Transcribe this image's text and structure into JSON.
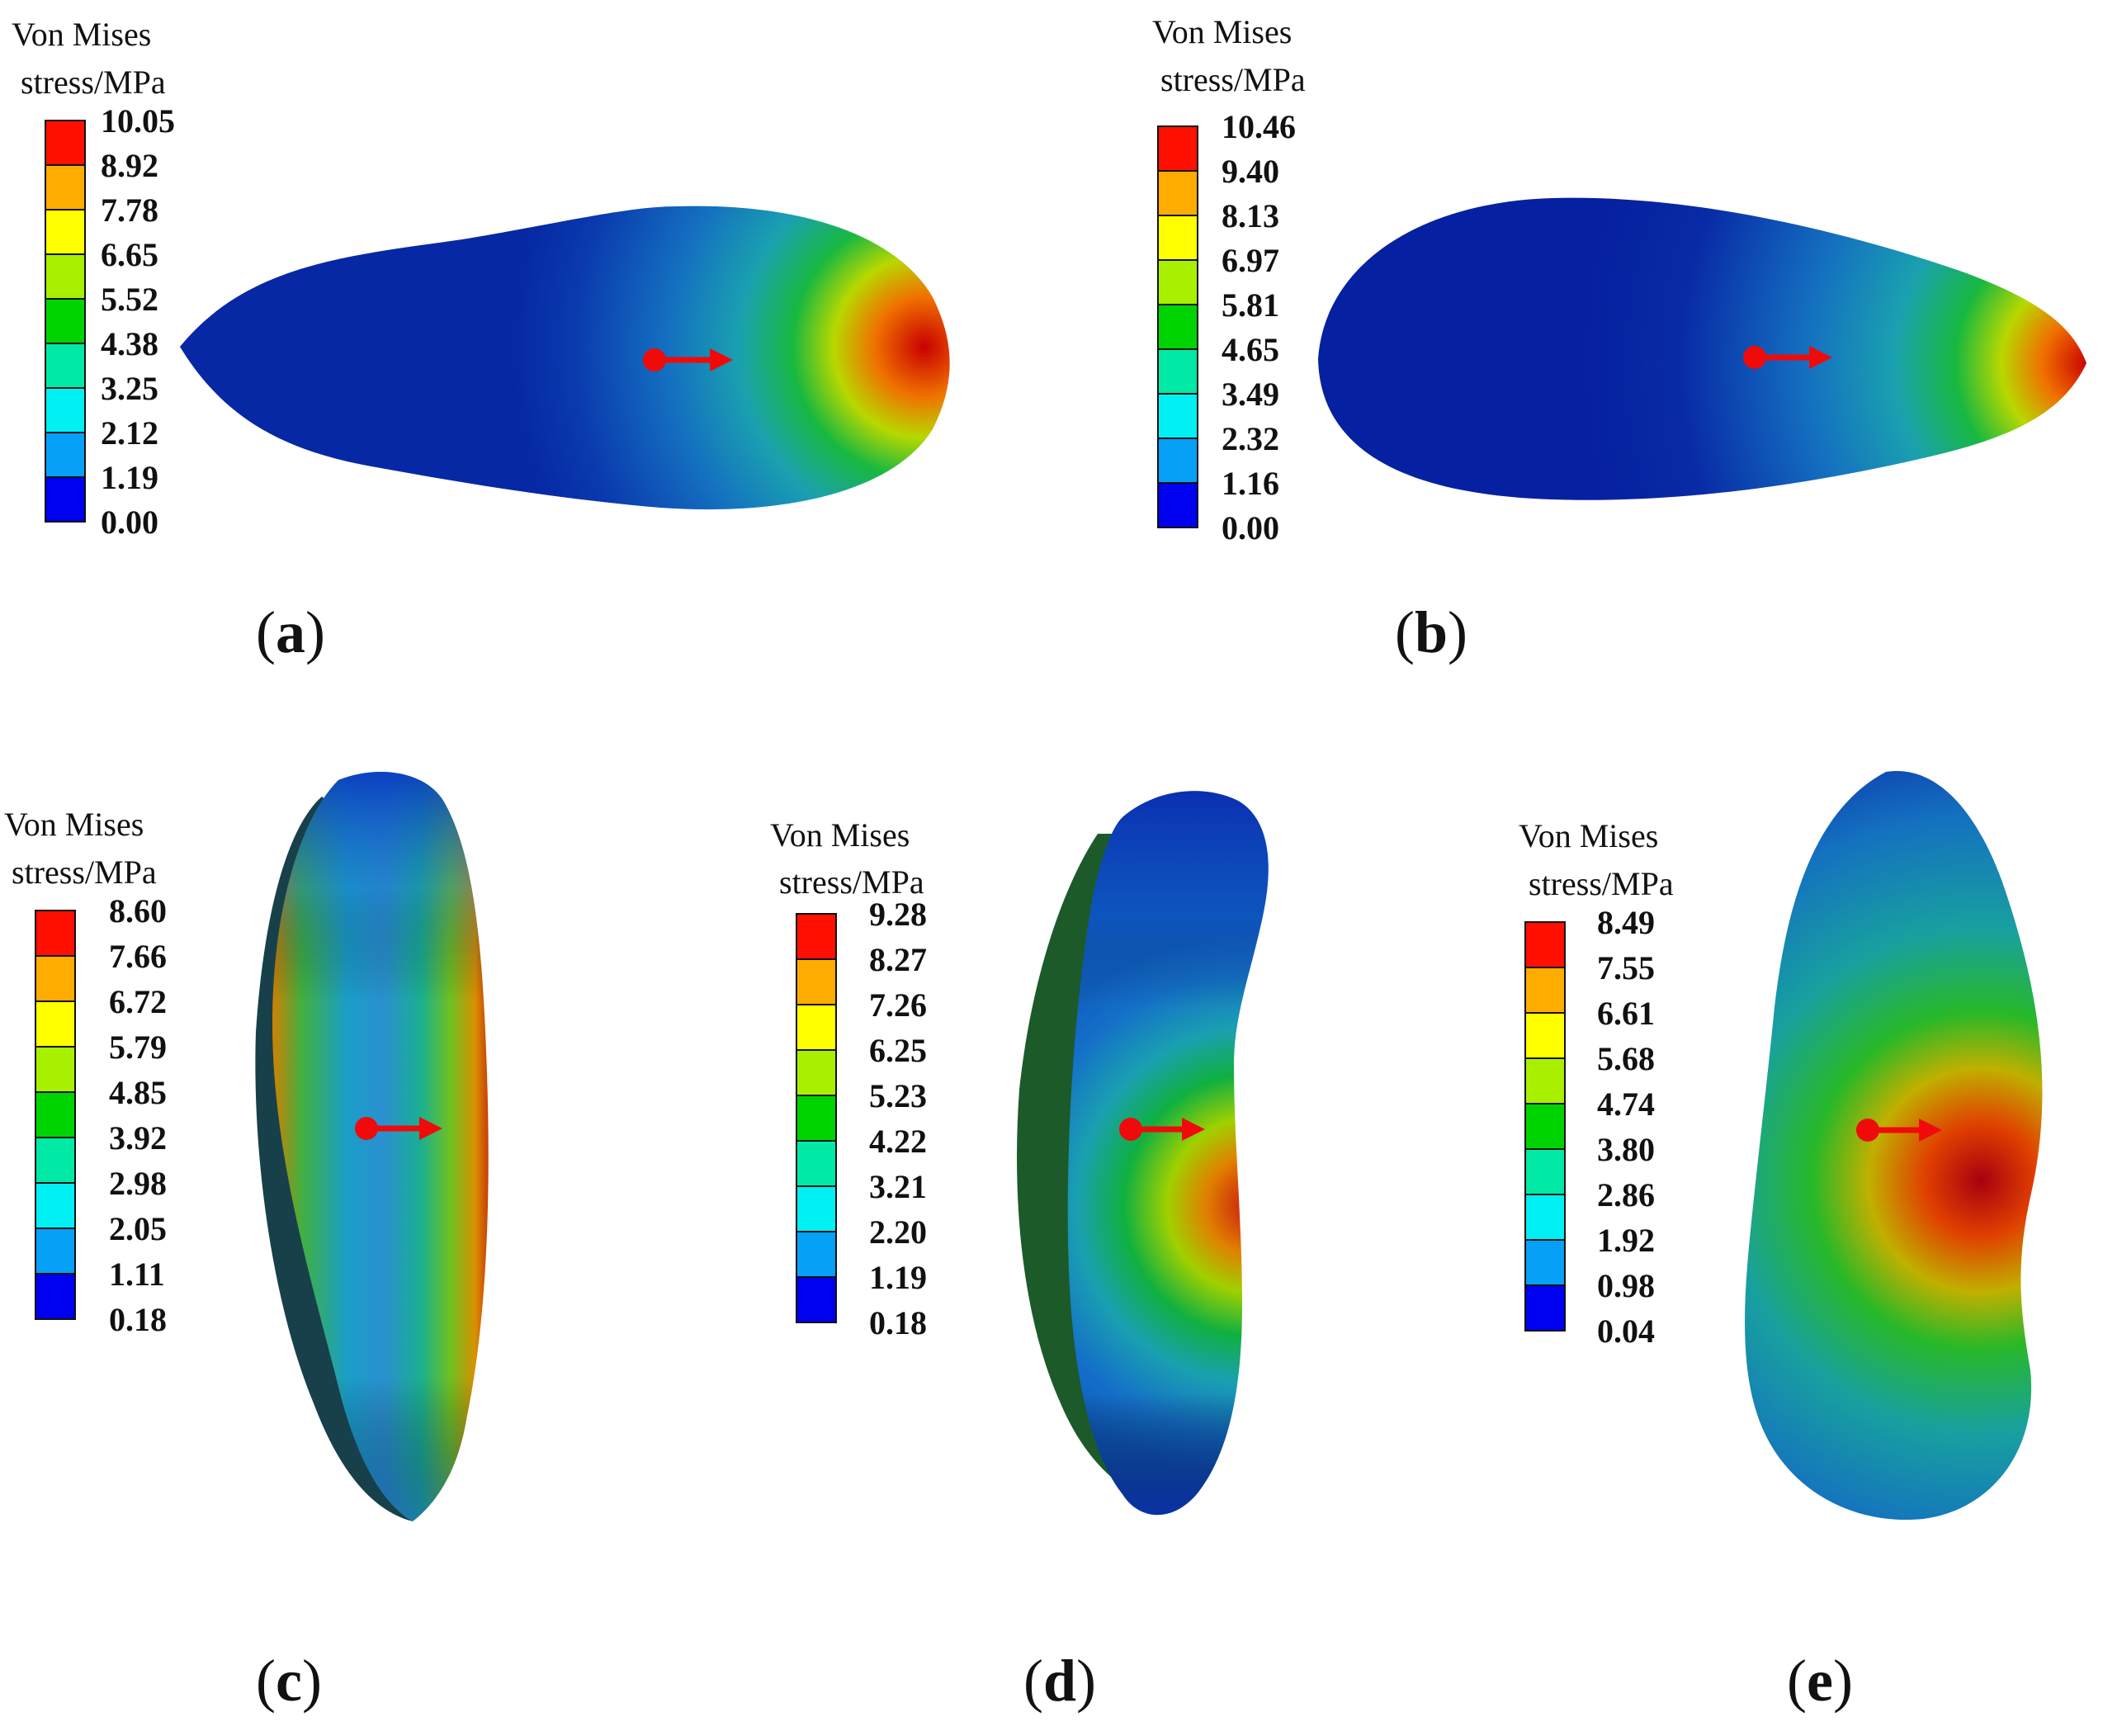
{
  "legend_title_line1": "Von Mises",
  "legend_title_line2": "stress/MPa",
  "colorbar_colors": [
    "#0000f0",
    "#06a0f6",
    "#00f0f4",
    "#00eaa6",
    "#00d400",
    "#a8f000",
    "#ffff00",
    "#ffac00",
    "#ff1000"
  ],
  "arrow_color": "#f00a0a",
  "panels": [
    {
      "id": "a",
      "label_open": "(",
      "label_letter": "a",
      "label_close": ")",
      "legend_values": [
        "10.05",
        "8.92",
        "7.78",
        "6.65",
        "5.52",
        "4.38",
        "3.25",
        "2.12",
        "1.19",
        "0.00"
      ]
    },
    {
      "id": "b",
      "label_open": "(",
      "label_letter": "b",
      "label_close": ")",
      "legend_values": [
        "10.46",
        "9.40",
        "8.13",
        "6.97",
        "5.81",
        "4.65",
        "3.49",
        "2.32",
        "1.16",
        "0.00"
      ]
    },
    {
      "id": "c",
      "label_open": "(",
      "label_letter": "c",
      "label_close": ")",
      "legend_values": [
        "8.60",
        "7.66",
        "6.72",
        "5.79",
        "4.85",
        "3.92",
        "2.98",
        "2.05",
        "1.11",
        "0.18"
      ]
    },
    {
      "id": "d",
      "label_open": "(",
      "label_letter": "d",
      "label_close": ")",
      "legend_values": [
        "9.28",
        "8.27",
        "7.26",
        "6.25",
        "5.23",
        "4.22",
        "3.21",
        "2.20",
        "1.19",
        "0.18"
      ]
    },
    {
      "id": "e",
      "label_open": "(",
      "label_letter": "e",
      "label_close": ")",
      "legend_values": [
        "8.49",
        "7.55",
        "6.61",
        "5.68",
        "4.74",
        "3.80",
        "2.86",
        "1.92",
        "0.98",
        "0.04"
      ]
    }
  ]
}
